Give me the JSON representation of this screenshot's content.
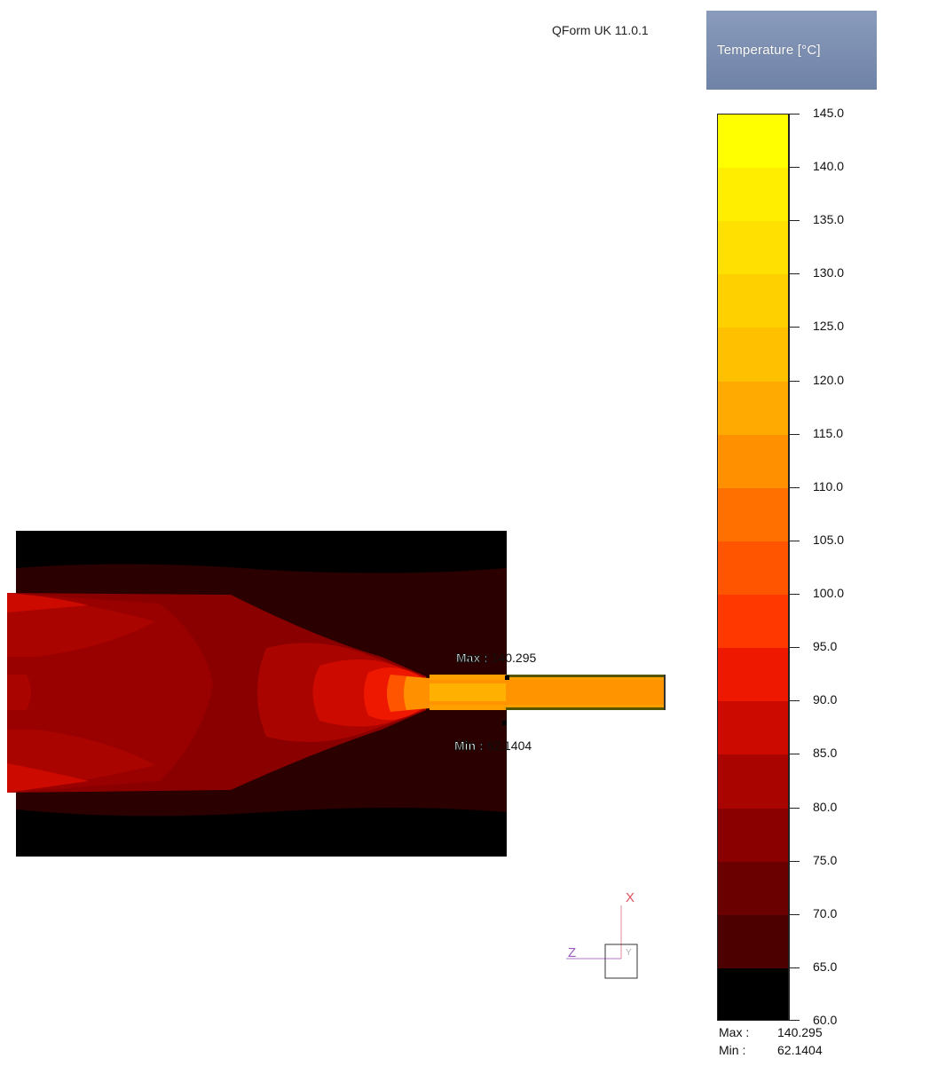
{
  "app": {
    "label": "QForm UK 11.0.1"
  },
  "legend": {
    "title": "Temperature  [°C]",
    "ticks": [
      "145.0",
      "140.0",
      "135.0",
      "130.0",
      "125.0",
      "120.0",
      "115.0",
      "110.0",
      "105.0",
      "100.0",
      "95.0",
      "90.0",
      "85.0",
      "80.0",
      "75.0",
      "70.0",
      "65.0",
      "60.0"
    ],
    "colors": [
      "#ffff00",
      "#ffee00",
      "#ffe000",
      "#ffd000",
      "#ffc000",
      "#ffaa00",
      "#ff9000",
      "#ff7000",
      "#ff5500",
      "#ff3800",
      "#ee1800",
      "#cc0a00",
      "#aa0400",
      "#8a0000",
      "#6a0000",
      "#4c0000",
      "#2c0000",
      "#000000"
    ],
    "max_label": "Max :",
    "max_value": "140.295",
    "min_label": "Min :",
    "min_value": "62.1404"
  },
  "viewport": {
    "max_marker_key": "Max :",
    "max_marker_value": "140.295",
    "min_marker_key": "Min :",
    "min_marker_value": "62.1404"
  },
  "axes": {
    "x": "X",
    "y": "Y",
    "z": "Z"
  }
}
